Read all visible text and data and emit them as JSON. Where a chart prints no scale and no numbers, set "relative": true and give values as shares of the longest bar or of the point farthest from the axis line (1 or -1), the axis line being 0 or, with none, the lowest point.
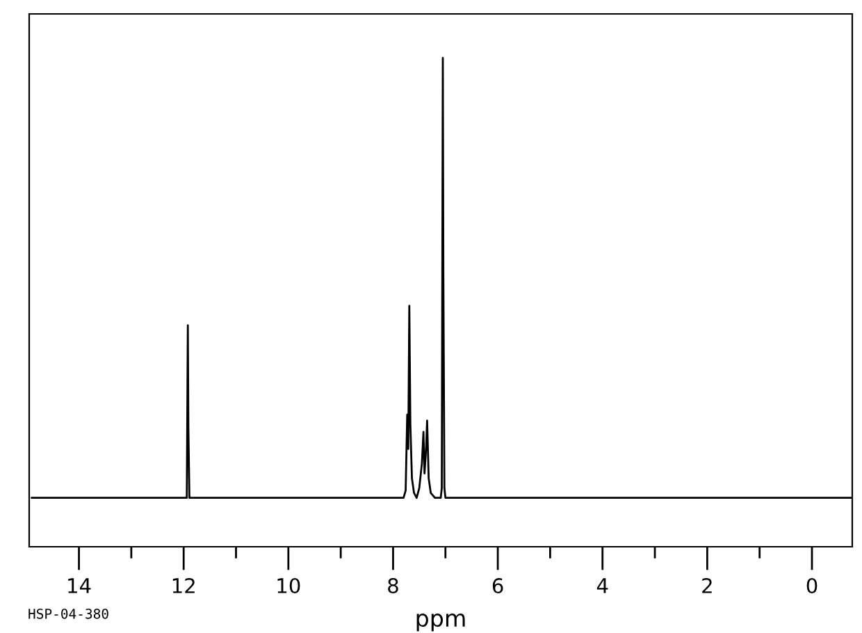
{
  "chart_data": {
    "type": "line",
    "relative": true,
    "xlabel": "ppm",
    "annotations": [
      "HSP-04-380"
    ],
    "xlim": [
      14.95,
      -0.77
    ],
    "xticks": [
      14,
      {
        "value": 13,
        "label": null
      },
      12,
      {
        "value": 11,
        "label": null
      },
      10,
      {
        "value": 9,
        "label": null
      },
      8,
      {
        "value": 7,
        "label": null
      },
      6,
      {
        "value": 5,
        "label": null
      },
      4,
      {
        "value": 3,
        "label": null
      },
      2,
      {
        "value": 1,
        "label": null
      },
      0
    ],
    "grid": false,
    "legend": false,
    "marker": "none",
    "line_style": "solid",
    "series": [
      {
        "color": "#000000",
        "x": [
          14.9,
          12.0,
          11.94,
          11.92,
          11.91,
          11.89,
          7.8,
          7.76,
          7.73,
          7.71,
          7.69,
          7.67,
          7.64,
          7.6,
          7.55,
          7.5,
          7.45,
          7.42,
          7.4,
          7.37,
          7.35,
          7.32,
          7.28,
          7.2,
          7.09,
          7.07,
          7.05,
          7.04,
          7.02,
          7.0,
          -0.75
        ],
        "values": [
          0.1,
          0.1,
          0.1,
          0.453,
          0.244,
          0.1,
          0.1,
          0.115,
          0.27,
          0.2,
          0.493,
          0.25,
          0.14,
          0.11,
          0.1,
          0.12,
          0.17,
          0.235,
          0.15,
          0.2,
          0.258,
          0.14,
          0.11,
          0.1,
          0.1,
          0.12,
          1.0,
          0.56,
          0.12,
          0.1,
          0.1
        ]
      }
    ]
  }
}
